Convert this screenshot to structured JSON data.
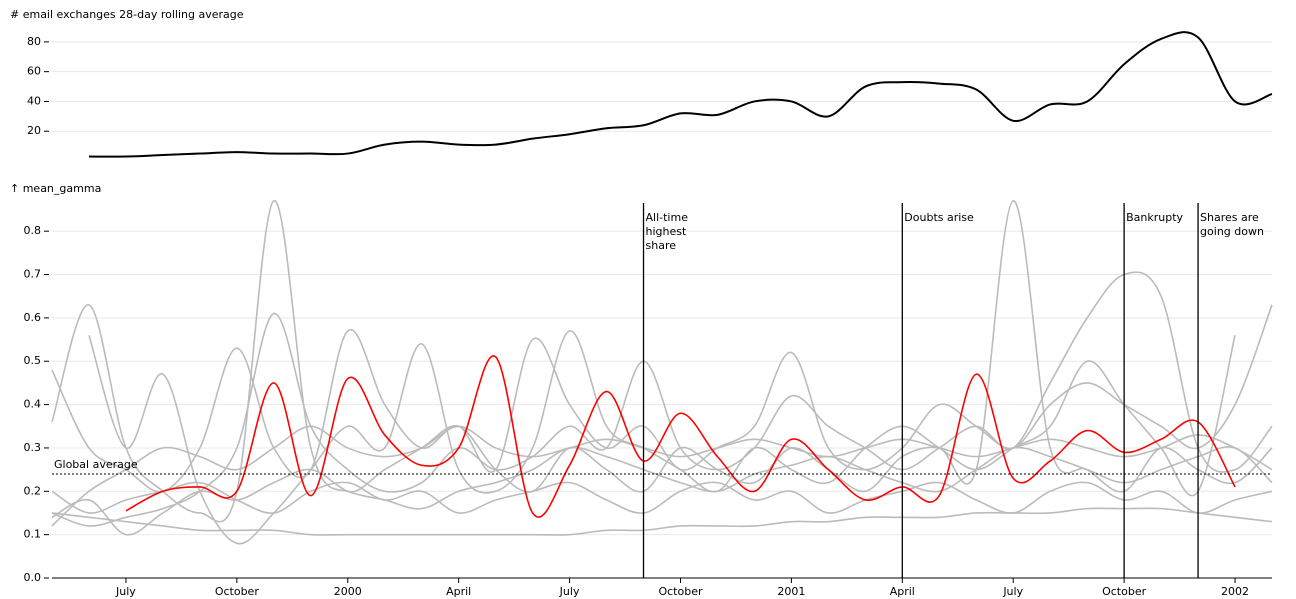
{
  "chart_data": [
    {
      "type": "line",
      "title": "# email exchanges 28-day rolling average",
      "x": [
        "1999-06",
        "1999-07",
        "1999-08",
        "1999-09",
        "1999-10",
        "1999-11",
        "1999-12",
        "2000-01",
        "2000-02",
        "2000-03",
        "2000-04",
        "2000-05",
        "2000-06",
        "2000-07",
        "2000-08",
        "2000-09",
        "2000-10",
        "2000-11",
        "2000-12",
        "2001-01",
        "2001-02",
        "2001-03",
        "2001-04",
        "2001-05",
        "2001-06",
        "2001-07",
        "2001-08",
        "2001-09",
        "2001-10",
        "2001-11",
        "2001-12",
        "2002-01",
        "2002-02"
      ],
      "series": [
        {
          "color": "#000000",
          "values": [
            3,
            3,
            4,
            5,
            6,
            5,
            5,
            5,
            11,
            13,
            11,
            11,
            15,
            18,
            22,
            24,
            32,
            31,
            40,
            40,
            30,
            50,
            53,
            52,
            48,
            27,
            38,
            40,
            65,
            82,
            83,
            40,
            45
          ]
        }
      ],
      "xlim": [
        "1999-05",
        "2002-02"
      ],
      "ylim": [
        0,
        90
      ],
      "yticks": [
        20,
        40,
        60,
        80
      ],
      "grid": true
    },
    {
      "type": "line",
      "y_label": "↑ mean_gamma",
      "x": [
        "1999-05",
        "1999-06",
        "1999-07",
        "1999-08",
        "1999-09",
        "1999-10",
        "1999-11",
        "1999-12",
        "2000-01",
        "2000-02",
        "2000-03",
        "2000-04",
        "2000-05",
        "2000-06",
        "2000-07",
        "2000-08",
        "2000-09",
        "2000-10",
        "2000-11",
        "2000-12",
        "2001-01",
        "2001-02",
        "2001-03",
        "2001-04",
        "2001-05",
        "2001-06",
        "2001-07",
        "2001-08",
        "2001-09",
        "2001-10",
        "2001-11",
        "2001-12",
        "2002-01",
        "2002-02"
      ],
      "series": [
        {
          "color": "#bbbbbb",
          "values": [
            0.36,
            0.63,
            0.3,
            0.2,
            0.15,
            0.2,
            0.87,
            0.3,
            0.2,
            0.25,
            0.3,
            0.35,
            0.25,
            0.2,
            0.3,
            0.25,
            0.2,
            0.3,
            0.25,
            0.22,
            0.3,
            0.25,
            0.2,
            0.28,
            0.3,
            0.25,
            0.87,
            0.3,
            0.25,
            0.2,
            0.3,
            0.25,
            0.22,
            0.3
          ]
        },
        {
          "color": "#bbbbbb",
          "values": [
            0.15,
            0.12,
            0.14,
            0.16,
            0.2,
            0.3,
            0.61,
            0.35,
            0.25,
            0.2,
            0.22,
            0.3,
            0.25,
            0.28,
            0.35,
            0.3,
            0.5,
            0.3,
            0.25,
            0.3,
            0.42,
            0.35,
            0.3,
            0.25,
            0.3,
            0.35,
            0.3,
            0.45,
            0.6,
            0.7,
            0.65,
            0.3,
            0.25,
            0.35
          ]
        },
        {
          "color": "#bbbbbb",
          "values": [
            0.48,
            0.3,
            0.25,
            0.2,
            0.3,
            0.53,
            0.3,
            0.25,
            0.57,
            0.4,
            0.3,
            0.35,
            0.25,
            0.55,
            0.4,
            0.3,
            0.35,
            0.25,
            0.3,
            0.35,
            0.52,
            0.3,
            0.25,
            0.3,
            0.4,
            0.35,
            0.3,
            0.4,
            0.45,
            0.4,
            0.35,
            0.3,
            0.4,
            0.63
          ]
        },
        {
          "color": "#bbbbbb",
          "values": [
            0.15,
            0.14,
            0.13,
            0.12,
            0.11,
            0.11,
            0.11,
            0.1,
            0.1,
            0.1,
            0.1,
            0.1,
            0.1,
            0.1,
            0.1,
            0.11,
            0.11,
            0.12,
            0.12,
            0.12,
            0.13,
            0.13,
            0.14,
            0.14,
            0.14,
            0.15,
            0.15,
            0.15,
            0.16,
            0.16,
            0.16,
            0.15,
            0.14,
            0.13
          ]
        },
        {
          "color": "#bbbbbb",
          "values": [
            0.14,
            0.18,
            0.1,
            0.15,
            0.2,
            0.18,
            0.22,
            0.25,
            0.2,
            0.18,
            0.16,
            0.2,
            0.22,
            0.25,
            0.3,
            0.28,
            0.25,
            0.22,
            0.2,
            0.24,
            0.26,
            0.28,
            0.25,
            0.22,
            0.2,
            0.25,
            0.3,
            0.28,
            0.25,
            0.22,
            0.25,
            0.28,
            0.3,
            0.22
          ]
        },
        {
          "color": "#bbbbbb",
          "values": [
            null,
            0.56,
            0.3,
            0.47,
            0.2,
            0.08,
            0.15,
            0.25,
            0.35,
            0.3,
            0.54,
            0.25,
            0.2,
            0.3,
            0.57,
            0.35,
            0.3,
            0.25,
            0.2,
            0.3,
            0.25,
            0.22,
            0.3,
            0.35,
            0.3,
            0.25,
            0.3,
            0.35,
            0.5,
            0.4,
            0.3,
            0.2,
            0.56,
            null
          ]
        },
        {
          "color": "#bbbbbb",
          "values": [
            0.12,
            0.2,
            0.25,
            0.3,
            0.28,
            0.25,
            0.3,
            0.35,
            0.3,
            0.28,
            0.3,
            0.35,
            0.3,
            0.28,
            0.3,
            0.32,
            0.3,
            0.28,
            0.3,
            0.32,
            0.3,
            0.28,
            0.3,
            0.32,
            0.3,
            0.28,
            0.3,
            0.32,
            0.3,
            0.28,
            0.3,
            0.33,
            0.3,
            0.25
          ]
        },
        {
          "color": "#bbbbbb",
          "values": [
            0.2,
            0.15,
            0.18,
            0.2,
            0.22,
            0.18,
            0.15,
            0.2,
            0.22,
            0.18,
            0.2,
            0.15,
            0.18,
            0.2,
            0.22,
            0.18,
            0.15,
            0.2,
            0.22,
            0.18,
            0.2,
            0.15,
            0.18,
            0.2,
            0.22,
            0.18,
            0.15,
            0.2,
            0.22,
            0.18,
            0.2,
            0.15,
            0.18,
            0.2
          ]
        },
        {
          "color": "#ff0000",
          "values": [
            null,
            null,
            0.155,
            0.2,
            0.21,
            0.2,
            0.45,
            0.19,
            0.46,
            0.33,
            0.26,
            0.3,
            0.51,
            0.15,
            0.26,
            0.43,
            0.27,
            0.38,
            0.28,
            0.2,
            0.32,
            0.25,
            0.18,
            0.21,
            0.19,
            0.47,
            0.23,
            0.27,
            0.34,
            0.29,
            0.32,
            0.36,
            0.21,
            null
          ]
        }
      ],
      "reference": {
        "value": 0.24,
        "label": "Global average"
      },
      "annotations": [
        {
          "x": "2000-09",
          "label": "All-time highest share"
        },
        {
          "x": "2001-04",
          "label": "Doubts arise"
        },
        {
          "x": "2001-10",
          "label": "Bankrupty"
        },
        {
          "x": "2001-12",
          "label": "Shares are going down"
        }
      ],
      "xlim": [
        "1999-05",
        "2002-02"
      ],
      "xticks": [
        {
          "value": "1999-07",
          "label": "July"
        },
        {
          "value": "1999-10",
          "label": "October"
        },
        {
          "value": "2000-01",
          "label": "2000"
        },
        {
          "value": "2000-04",
          "label": "April"
        },
        {
          "value": "2000-07",
          "label": "July"
        },
        {
          "value": "2000-10",
          "label": "October"
        },
        {
          "value": "2001-01",
          "label": "2001"
        },
        {
          "value": "2001-04",
          "label": "April"
        },
        {
          "value": "2001-07",
          "label": "July"
        },
        {
          "value": "2001-10",
          "label": "October"
        },
        {
          "value": "2002-01",
          "label": "2002"
        }
      ],
      "ylim": [
        0,
        0.865
      ],
      "yticks": [
        {
          "value": 0,
          "label": "0.0"
        },
        0.1,
        0.2,
        0.3,
        0.4,
        0.5,
        0.6,
        0.7,
        0.8
      ],
      "grid": true
    }
  ]
}
